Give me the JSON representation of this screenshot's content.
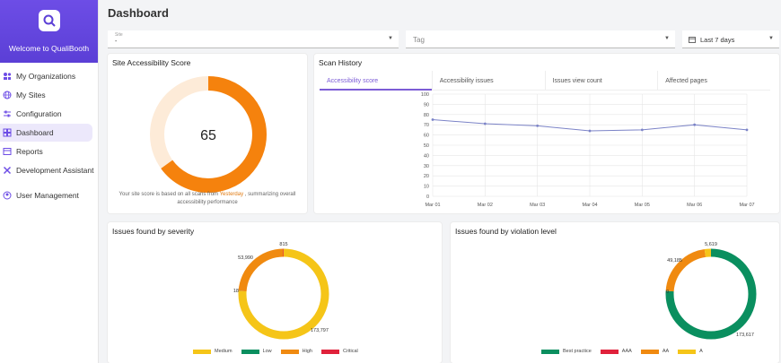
{
  "sidebar": {
    "brand_title": "Welcome to QualiBooth",
    "items": [
      {
        "label": "My Organizations",
        "icon": "org-icon"
      },
      {
        "label": "My Sites",
        "icon": "globe-icon"
      },
      {
        "label": "Configuration",
        "icon": "sliders-icon"
      },
      {
        "label": "Dashboard",
        "icon": "dashboard-icon",
        "active": true
      },
      {
        "label": "Reports",
        "icon": "reports-icon"
      },
      {
        "label": "Development Assistant",
        "icon": "tools-icon"
      },
      {
        "label": "User Management",
        "icon": "user-icon"
      }
    ]
  },
  "page": {
    "title": "Dashboard"
  },
  "filters": {
    "site_label": "Site",
    "site_value": "-",
    "tag_placeholder": "Tag",
    "date_value": "Last 7 days"
  },
  "score_card": {
    "title": "Site Accessibility Score",
    "score": "65",
    "score_fraction": 0.65,
    "note_prefix": "Your site score is based on all scans from",
    "note_highlight": "Yesterday",
    "note_suffix": ", summarizing overall accessibility performance",
    "colors": {
      "fill": "#f5820d",
      "track": "#fdebd8"
    }
  },
  "scan_history": {
    "title": "Scan History",
    "tabs": [
      "Accessibility score",
      "Accessibility issues",
      "Issues view count",
      "Affected pages"
    ],
    "active_tab": 0
  },
  "severity_card": {
    "title": "Issues found by severity",
    "legend": [
      {
        "label": "Medium",
        "color": "#f5c518"
      },
      {
        "label": "Low",
        "color": "#0a8f5f"
      },
      {
        "label": "High",
        "color": "#f08a10"
      },
      {
        "label": "Critical",
        "color": "#e0213b"
      }
    ]
  },
  "violation_card": {
    "title": "Issues found by violation level",
    "legend": [
      {
        "label": "Best practice",
        "color": "#0a8f5f"
      },
      {
        "label": "AAA",
        "color": "#e0213b"
      },
      {
        "label": "AA",
        "color": "#f08a10"
      },
      {
        "label": "A",
        "color": "#f5c518"
      }
    ]
  },
  "chart_data": [
    {
      "type": "line",
      "x": [
        "Mar 01",
        "Mar 02",
        "Mar 03",
        "Mar 04",
        "Mar 05",
        "Mar 06",
        "Mar 07"
      ],
      "series": [
        {
          "values": [
            75,
            71,
            69,
            64,
            65,
            70,
            65
          ]
        }
      ],
      "ylim": [
        0,
        100
      ],
      "yticks": [
        0,
        10,
        20,
        30,
        40,
        50,
        60,
        70,
        80,
        90,
        100
      ],
      "grid": true,
      "color": "#7b83c7"
    },
    {
      "type": "pie",
      "labels": [
        "Medium",
        "Low",
        "High",
        "Critical"
      ],
      "values": [
        173797,
        18,
        53990,
        815
      ],
      "value_labels": [
        "173,797",
        "18",
        "53,990",
        "815"
      ],
      "colors": [
        "#f5c518",
        "#0a8f5f",
        "#f08a10",
        "#e0213b"
      ]
    },
    {
      "type": "pie",
      "labels": [
        "Best practice",
        "AAA",
        "AA",
        "A"
      ],
      "values": [
        173617,
        0,
        49185,
        5619
      ],
      "value_labels": [
        "173,617",
        "0",
        "49,185",
        "5,619"
      ],
      "colors": [
        "#0a8f5f",
        "#e0213b",
        "#f08a10",
        "#f5c518"
      ]
    }
  ]
}
